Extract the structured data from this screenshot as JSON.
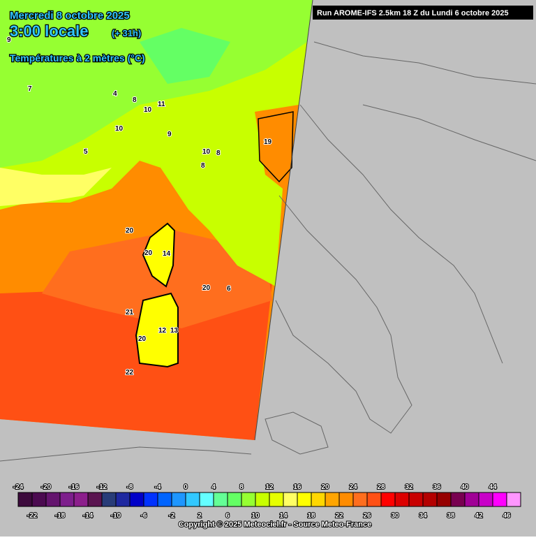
{
  "header": {
    "date": "Mercredi 8 octobre 2025",
    "time": "3:00 locale",
    "offset": "(+ 31h)",
    "variable": "Températures à 2 mètres (°C)"
  },
  "run_info": "Run AROME-IFS 2.5km 18 Z du Lundi 6 octobre 2025",
  "map_labels": [
    20,
    20,
    20,
    21,
    22,
    19,
    20,
    14,
    12,
    13,
    10,
    8,
    9,
    7,
    5,
    11,
    10,
    8,
    4,
    6,
    8,
    9,
    10
  ],
  "scale": {
    "labels": [
      -24,
      -22,
      -20,
      -18,
      -16,
      -14,
      -12,
      -10,
      -8,
      -6,
      -4,
      -2,
      0,
      2,
      4,
      6,
      8,
      10,
      12,
      14,
      16,
      18,
      20,
      22,
      24,
      26,
      28,
      30,
      32,
      34,
      36,
      38,
      40,
      42,
      44,
      46
    ],
    "colors": [
      "#3c0a3c",
      "#4b0a50",
      "#64146e",
      "#7d1e8c",
      "#8c1e8c",
      "#5a1450",
      "#283c78",
      "#1e28a0",
      "#0000c8",
      "#0032ff",
      "#0064ff",
      "#1e96ff",
      "#32c8ff",
      "#64ffff",
      "#64ff96",
      "#64ff64",
      "#96ff32",
      "#c8ff00",
      "#e6ff00",
      "#ffff64",
      "#ffff00",
      "#ffd700",
      "#ffa500",
      "#ff8c00",
      "#ff6e1e",
      "#ff5014",
      "#ff0000",
      "#dc0000",
      "#c80000",
      "#b40000",
      "#960000",
      "#780050",
      "#a00096",
      "#c800c8",
      "#ff00ff",
      "#ff96ff"
    ]
  },
  "copyright": "Copyright © 2025 Meteociel.fr - Source Meteo-France"
}
